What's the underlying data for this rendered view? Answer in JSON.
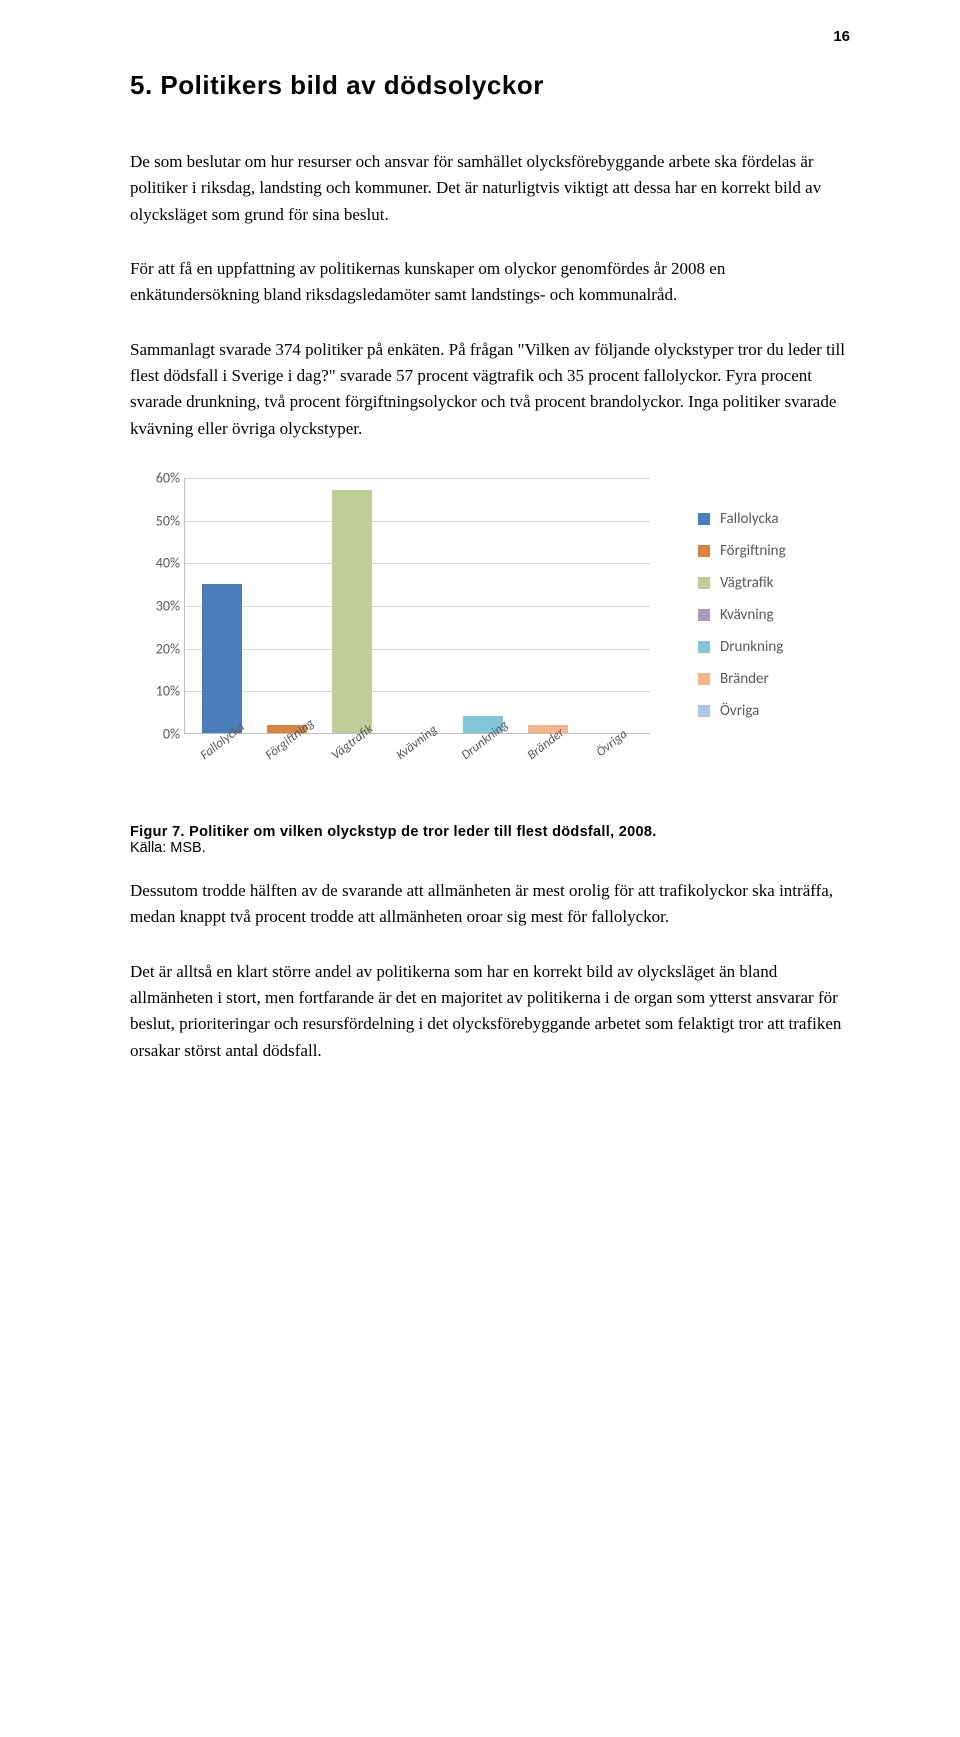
{
  "page_number": "16",
  "heading": "5.  Politikers bild av dödsolyckor",
  "paragraphs": {
    "p1": "De som beslutar om hur resurser och ansvar för samhället olycksförebyggande arbete ska fördelas är politiker i riksdag, landsting och kommuner. Det är naturligtvis viktigt att dessa har en korrekt bild av olycksläget som grund för sina beslut.",
    "p2": "För att få en uppfattning av politikernas kunskaper om olyckor genomfördes år 2008 en enkätundersökning bland riksdagsledamöter samt landstings- och kommunalråd.",
    "p3": "Sammanlagt svarade 374 politiker på enkäten. På frågan \"Vilken av följande olyckstyper tror du leder till flest dödsfall i Sverige i dag?\" svarade 57 procent vägtrafik och 35 procent fallolyckor. Fyra procent svarade drunkning, två procent förgiftningsolyckor och två procent brandolyckor. Inga politiker svarade kvävning eller övriga olyckstyper.",
    "p4": "Dessutom trodde hälften av de svarande att allmänheten är mest orolig för att trafikolyckor ska inträffa, medan knappt två procent trodde att allmänheten oroar sig mest för fallolyckor.",
    "p5": "Det är alltså en klart större andel av politikerna som har en korrekt bild av olycksläget än bland allmänheten i stort, men fortfarande är det en majoritet av politikerna i de organ som ytterst ansvarar för beslut, prioriteringar och resursfördelning i det olycksförebyggande arbetet som felaktigt tror att trafiken orsakar störst antal dödsfall."
  },
  "caption": {
    "bold": "Figur 7. Politiker om vilken olyckstyp de tror leder till flest dödsfall, 2008.",
    "src": "Källa: MSB."
  },
  "chart": {
    "type": "bar",
    "y_max_pct": 60,
    "y_ticks": [
      0,
      10,
      20,
      30,
      40,
      50,
      60
    ],
    "y_tick_labels": [
      "0%",
      "10%",
      "20%",
      "30%",
      "40%",
      "50%",
      "60%"
    ],
    "categories": [
      "Fallolycka",
      "Förgiftning",
      "Vägtrafik",
      "Kvävning",
      "Drunkning",
      "Bränder",
      "Övriga"
    ],
    "values": [
      35,
      2,
      57,
      0,
      4,
      2,
      0
    ],
    "bar_colors": [
      "#4a7ebb",
      "#db843d",
      "#bfcd96",
      "#a99bbd",
      "#83c5d8",
      "#f5b58a",
      "#aec7e8"
    ],
    "grid_color": "#d9d9d9",
    "axis_color": "#bfbfbf",
    "text_color": "#595959",
    "legend": [
      {
        "label": "Fallolycka",
        "color": "#4a7ebb"
      },
      {
        "label": "Förgiftning",
        "color": "#db843d"
      },
      {
        "label": "Vägtrafik",
        "color": "#bfcd96"
      },
      {
        "label": "Kvävning",
        "color": "#a99bbd"
      },
      {
        "label": "Drunkning",
        "color": "#83c5d8"
      },
      {
        "label": "Bränder",
        "color": "#f5b58a"
      },
      {
        "label": "Övriga",
        "color": "#aec7e8"
      }
    ]
  }
}
